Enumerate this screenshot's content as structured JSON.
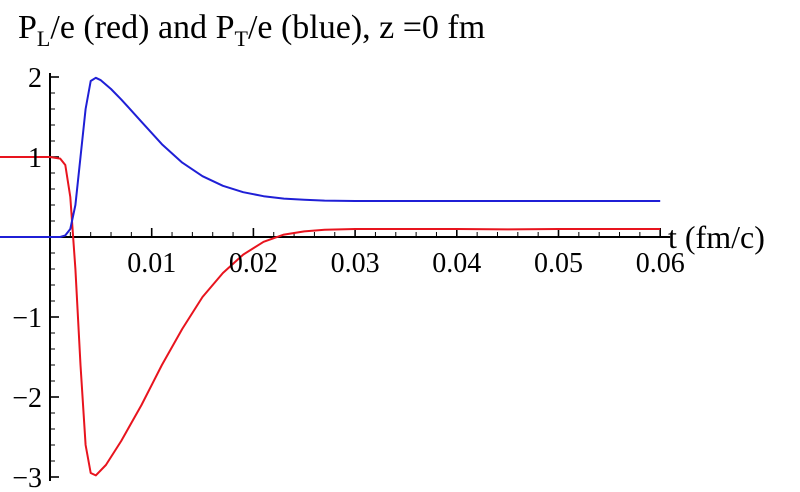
{
  "chart_data": {
    "type": "line",
    "title_parts": {
      "p1": "P",
      "p1_sub": "L",
      "p2": "/e (red) and ",
      "p3": "P",
      "p3_sub": "T",
      "p4": "/e (blue), z =0 fm"
    },
    "xlabel": "t (fm/c)",
    "ylabel": "",
    "xlim": [
      0,
      0.06
    ],
    "ylim": [
      -3,
      2
    ],
    "x_ticks": [
      {
        "value": 0.01,
        "label": "0.01"
      },
      {
        "value": 0.02,
        "label": "0.02"
      },
      {
        "value": 0.03,
        "label": "0.03"
      },
      {
        "value": 0.04,
        "label": "0.04"
      },
      {
        "value": 0.05,
        "label": "0.05"
      },
      {
        "value": 0.06,
        "label": "0.06"
      }
    ],
    "y_ticks": [
      {
        "value": 2,
        "label": "2"
      },
      {
        "value": 1,
        "label": "1"
      },
      {
        "value": -1,
        "label": "−1"
      },
      {
        "value": -2,
        "label": "−2"
      },
      {
        "value": -3,
        "label": "−3"
      }
    ],
    "grid": false,
    "series": [
      {
        "color": "#e8141e",
        "x": [
          -0.0068,
          0.0,
          0.001,
          0.0015,
          0.002,
          0.0025,
          0.003,
          0.0035,
          0.004,
          0.0045,
          0.0055,
          0.007,
          0.009,
          0.011,
          0.013,
          0.015,
          0.017,
          0.019,
          0.021,
          0.023,
          0.025,
          0.027,
          0.03,
          0.035,
          0.04,
          0.045,
          0.05,
          0.055,
          0.06
        ],
        "y": [
          1.0,
          1.0,
          0.98,
          0.9,
          0.5,
          -0.4,
          -1.6,
          -2.6,
          -2.95,
          -2.98,
          -2.85,
          -2.55,
          -2.1,
          -1.6,
          -1.15,
          -0.75,
          -0.45,
          -0.22,
          -0.06,
          0.03,
          0.07,
          0.09,
          0.1,
          0.1,
          0.1,
          0.095,
          0.1,
          0.1,
          0.1
        ]
      },
      {
        "color": "#1f1fd6",
        "x": [
          -0.0068,
          0.0,
          0.001,
          0.0015,
          0.002,
          0.0025,
          0.003,
          0.0035,
          0.004,
          0.0045,
          0.005,
          0.006,
          0.007,
          0.009,
          0.011,
          0.013,
          0.015,
          0.017,
          0.019,
          0.021,
          0.023,
          0.025,
          0.027,
          0.03,
          0.035,
          0.04,
          0.045,
          0.05,
          0.055,
          0.06
        ],
        "y": [
          0.0,
          0.0,
          0.0,
          0.02,
          0.1,
          0.4,
          1.0,
          1.6,
          1.95,
          1.99,
          1.96,
          1.85,
          1.72,
          1.44,
          1.16,
          0.93,
          0.76,
          0.64,
          0.56,
          0.51,
          0.48,
          0.465,
          0.455,
          0.45,
          0.45,
          0.45,
          0.45,
          0.45,
          0.45,
          0.45
        ]
      }
    ]
  }
}
